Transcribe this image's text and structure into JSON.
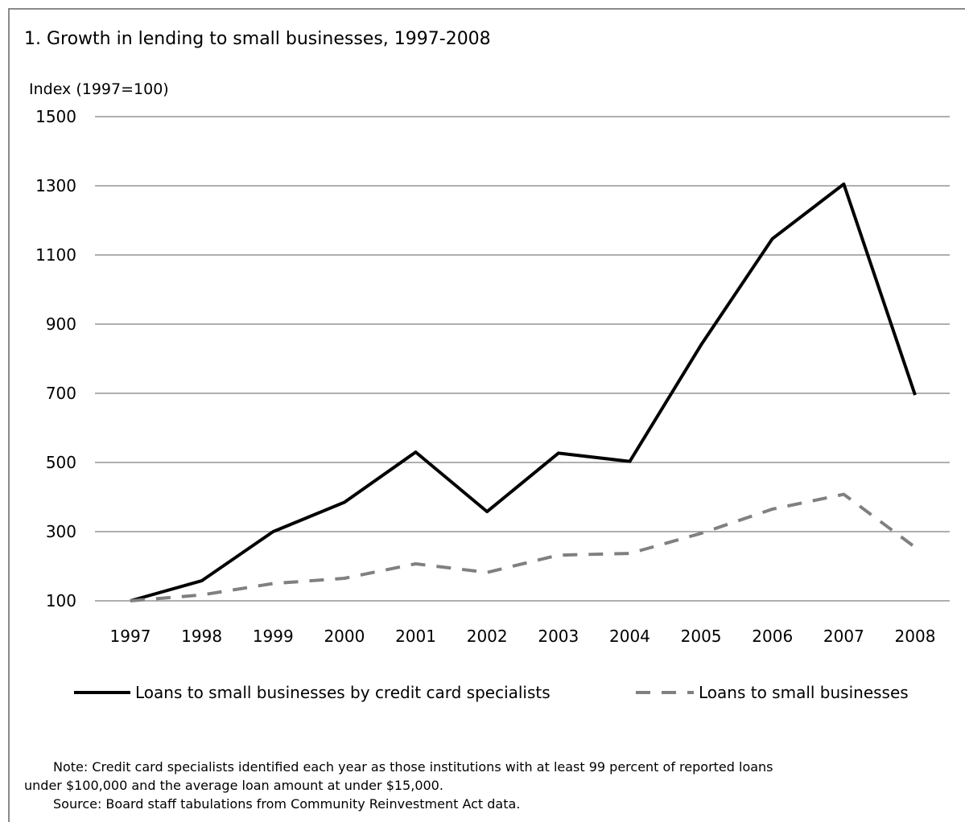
{
  "chart_data": {
    "type": "line",
    "title": "1.  Growth in lending to small businesses, 1997-2008",
    "ylabel": "Index (1997=100)",
    "xlabel": "",
    "categories": [
      "1997",
      "1998",
      "1999",
      "2000",
      "2001",
      "2002",
      "2003",
      "2004",
      "2005",
      "2006",
      "2007",
      "2008"
    ],
    "ylim": [
      100,
      1500
    ],
    "yticks": [
      "1500",
      "1300",
      "1100",
      "900",
      "700",
      "500",
      "300",
      "100"
    ],
    "grid": true,
    "legend_position": "bottom",
    "series": [
      {
        "name": "Loans to small businesses by credit card specialists",
        "values": [
          100,
          158,
          300,
          385,
          530,
          358,
          527,
          503,
          840,
          1147,
          1305,
          695
        ],
        "color": "#000000",
        "style": "solid"
      },
      {
        "name": "Loans to small businesses",
        "values": [
          100,
          117,
          150,
          165,
          207,
          182,
          232,
          237,
          295,
          365,
          408,
          255
        ],
        "color": "#808080",
        "style": "dashed"
      }
    ]
  },
  "notes": {
    "note_line1": "Note: Credit card specialists identified each year as those institutions with at least 99 percent of  reported loans",
    "note_line2": "under $100,000 and the average loan amount at under $15,000.",
    "source": "Source:  Board staff tabulations from Community Reinvestment Act data."
  }
}
